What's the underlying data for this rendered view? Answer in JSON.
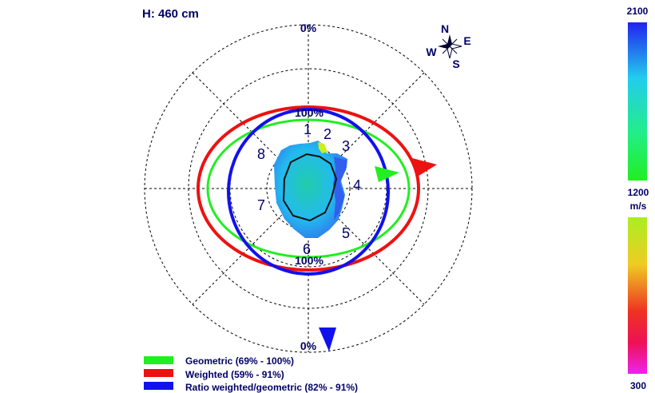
{
  "header": {
    "title": "H: 460 cm"
  },
  "chart_data": {
    "type": "polar",
    "title": "H: 460 cm",
    "radial_labels": {
      "top": "0%",
      "bottom": "0%",
      "inner_top": "100%",
      "inner_bottom": "100%"
    },
    "sectors": [
      "1",
      "2",
      "3",
      "4",
      "5",
      "6",
      "7",
      "8"
    ],
    "compass": {
      "N": "N",
      "E": "E",
      "S": "S",
      "W": "W"
    },
    "series": [
      {
        "name": "Geometric (69% - 100%)",
        "color": "#22ee22",
        "arrow_bearing_deg": 85
      },
      {
        "name": "Weighted (59% - 91%)",
        "color": "#ee1111",
        "arrow_bearing_deg": 80
      },
      {
        "name": "Ratio weighted/geometric (82% - 91%)",
        "color": "#1111ee",
        "arrow_bearing_deg": 175
      }
    ],
    "colorbar": {
      "unit": "m/s",
      "upper": {
        "max": "2100",
        "min": "1200",
        "colors": [
          "#2222ee",
          "#22ccee",
          "#22ee88",
          "#22ee22"
        ]
      },
      "lower": {
        "max": "1200",
        "min": "300",
        "colors": [
          "#aaee22",
          "#eecc22",
          "#ee4422",
          "#ee1144",
          "#ee22ee"
        ]
      }
    },
    "grid": true
  }
}
